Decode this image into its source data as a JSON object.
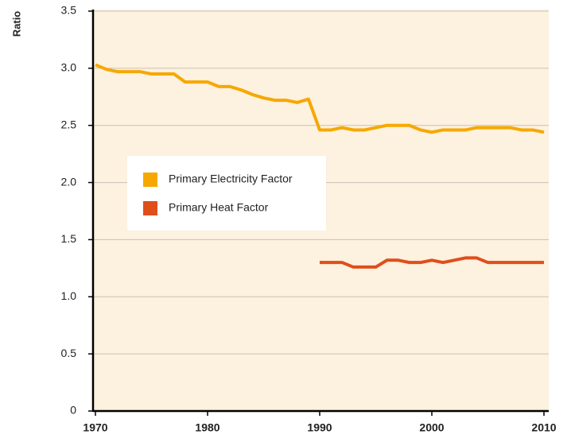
{
  "chart_data": {
    "type": "line",
    "y_label": "Ratio",
    "x": [
      1970,
      1971,
      1972,
      1973,
      1974,
      1975,
      1976,
      1977,
      1978,
      1979,
      1980,
      1981,
      1982,
      1983,
      1984,
      1985,
      1986,
      1987,
      1988,
      1989,
      1990,
      1991,
      1992,
      1993,
      1994,
      1995,
      1996,
      1997,
      1998,
      1999,
      2000,
      2001,
      2002,
      2003,
      2004,
      2005,
      2006,
      2007,
      2008,
      2009,
      2010
    ],
    "series": [
      {
        "name": "Primary Electricity Factor",
        "color": "#f6a800",
        "values": [
          3.03,
          2.99,
          2.97,
          2.97,
          2.97,
          2.95,
          2.95,
          2.95,
          2.88,
          2.88,
          2.88,
          2.84,
          2.84,
          2.81,
          2.77,
          2.74,
          2.72,
          2.72,
          2.7,
          2.73,
          2.46,
          2.46,
          2.48,
          2.46,
          2.46,
          2.48,
          2.5,
          2.5,
          2.5,
          2.46,
          2.44,
          2.46,
          2.46,
          2.46,
          2.48,
          2.48,
          2.48,
          2.48,
          2.46,
          2.46,
          2.44
        ]
      },
      {
        "name": "Primary Heat Factor",
        "color": "#e04e1a",
        "values": [
          null,
          null,
          null,
          null,
          null,
          null,
          null,
          null,
          null,
          null,
          null,
          null,
          null,
          null,
          null,
          null,
          null,
          null,
          null,
          null,
          1.3,
          1.3,
          1.3,
          1.26,
          1.26,
          1.26,
          1.32,
          1.32,
          1.3,
          1.3,
          1.32,
          1.3,
          1.32,
          1.34,
          1.34,
          1.3,
          1.3,
          1.3,
          1.3,
          1.3,
          1.3
        ]
      }
    ],
    "xlim": [
      1970,
      2010
    ],
    "xticks": [
      1970,
      1980,
      1990,
      2000,
      2010
    ],
    "ylim": [
      0,
      3.5
    ],
    "yticks": [
      0,
      0.5,
      {
        "value": 1,
        "label": "1.0"
      },
      1.5,
      {
        "value": 2,
        "label": "2.0"
      },
      2.5,
      {
        "value": 3,
        "label": "3.0"
      },
      3.5
    ],
    "grid": true,
    "legend": "center-left"
  }
}
